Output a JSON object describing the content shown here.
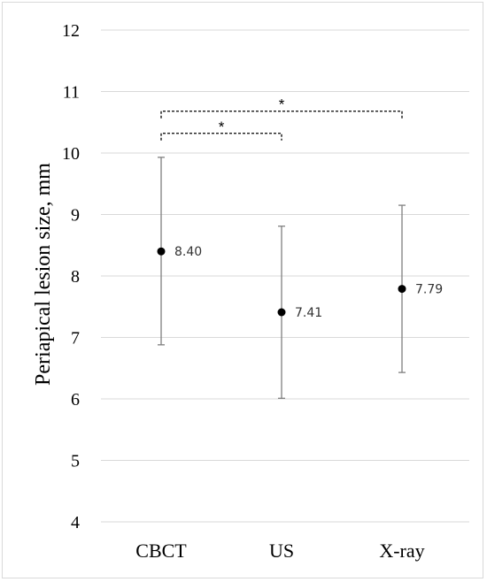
{
  "chart_data": {
    "type": "scatter",
    "categories": [
      "CBCT",
      "US",
      "X-ray"
    ],
    "series": [
      {
        "values": [
          8.4,
          7.41,
          7.79
        ],
        "error_low": [
          6.88,
          6.01,
          6.43
        ],
        "error_high": [
          9.93,
          8.81,
          9.15
        ],
        "data_labels": [
          "8.40",
          "7.41",
          "7.79"
        ]
      }
    ],
    "ylabel": "Periapical lesion size, mm",
    "xlabel": "",
    "ylim": [
      4,
      12
    ],
    "yticks": [
      4,
      5,
      6,
      7,
      8,
      9,
      10,
      11,
      12
    ],
    "grid": true,
    "significance": [
      {
        "from": "CBCT",
        "to": "X-ray",
        "level": 10.68,
        "label": "*"
      },
      {
        "from": "CBCT",
        "to": "US",
        "level": 10.32,
        "label": "*"
      }
    ],
    "colors": {
      "marker": "#000000",
      "error_bar": "#7f7f7f",
      "grid": "#d9d9d9",
      "bracket": "#000000"
    }
  }
}
